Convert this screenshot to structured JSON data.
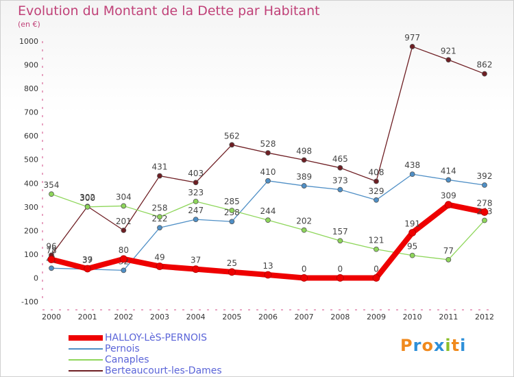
{
  "header": {
    "title": "Evolution du Montant de la Dette par Habitant",
    "subtitle": "(en €)"
  },
  "logo": {
    "text": [
      "P",
      "r",
      "o",
      "x",
      "i",
      "t",
      "i"
    ],
    "colors": [
      "#f08a1e",
      "#2d8fd8",
      "#f08a1e",
      "#2d8fd8",
      "#8bbf2a",
      "#f08a1e",
      "#2d8fd8"
    ]
  },
  "chart_data": {
    "type": "line",
    "title": "Evolution du Montant de la Dette par Habitant",
    "subtitle": "(en €)",
    "x": [
      "2000",
      "2001",
      "2002",
      "2003",
      "2004",
      "2005",
      "2006",
      "2007",
      "2008",
      "2009",
      "2010",
      "2011",
      "2012"
    ],
    "ylim": [
      -100,
      1000
    ],
    "yticks": [
      -100,
      0,
      100,
      200,
      300,
      400,
      500,
      600,
      700,
      800,
      900,
      1000
    ],
    "grid": false,
    "legend_position": "bottom-left",
    "series": [
      {
        "name": "Berteaucourt-les-Dames",
        "color": "#6e1e23",
        "values": [
          96,
          302,
          201,
          431,
          403,
          562,
          528,
          498,
          465,
          408,
          977,
          921,
          862
        ]
      },
      {
        "name": "Pernois",
        "color": "#4f8fc6",
        "values": [
          41,
          37,
          32,
          212,
          247,
          238,
          410,
          389,
          373,
          329,
          438,
          414,
          392
        ]
      },
      {
        "name": "Canaples",
        "color": "#8ed65a",
        "values": [
          354,
          300,
          304,
          258,
          323,
          285,
          244,
          202,
          157,
          121,
          95,
          77,
          243
        ]
      },
      {
        "name": "HALLOY-LèS-PERNOIS",
        "color": "#ee0000",
        "values": [
          78,
          39,
          80,
          49,
          37,
          25,
          13,
          0,
          0,
          0,
          191,
          309,
          278
        ]
      }
    ]
  },
  "legend": [
    {
      "label": "HALLOY-LèS-PERNOIS",
      "color": "#ee0000"
    },
    {
      "label": "Pernois",
      "color": "#4f8fc6"
    },
    {
      "label": "Canaples",
      "color": "#8ed65a"
    },
    {
      "label": "Berteaucourt-les-Dames",
      "color": "#6e1e23"
    }
  ]
}
